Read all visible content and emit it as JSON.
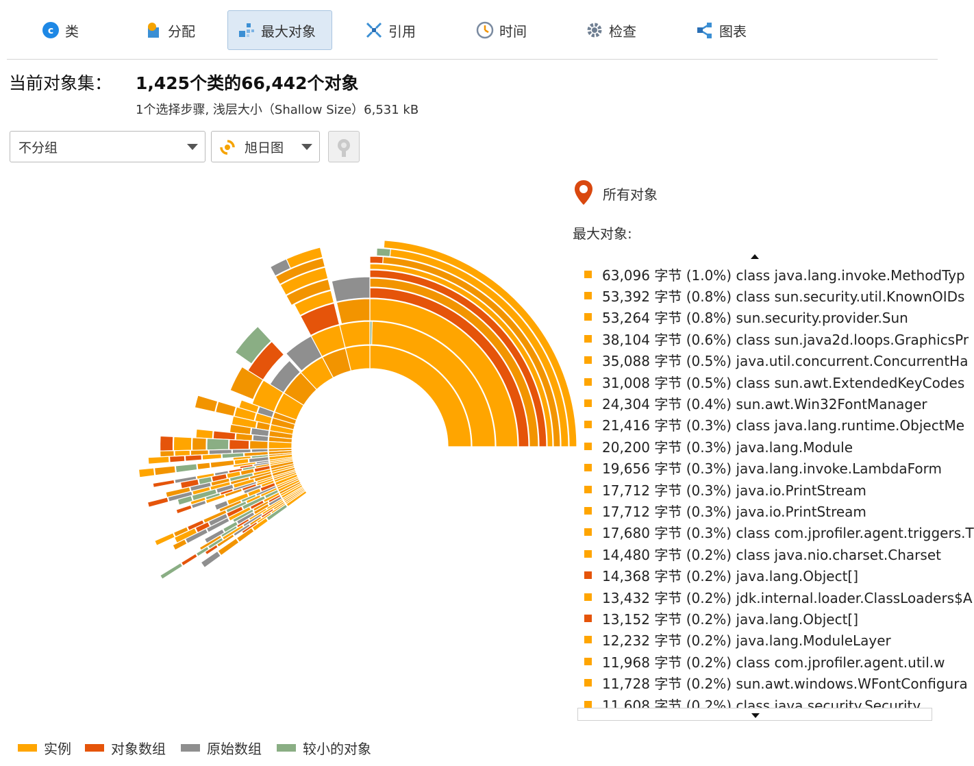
{
  "toolbar": {
    "tabs": [
      {
        "label": "类",
        "icon": "class-icon"
      },
      {
        "label": "分配",
        "icon": "allocation-icon"
      },
      {
        "label": "最大对象",
        "icon": "biggest-objects-icon"
      },
      {
        "label": "引用",
        "icon": "references-icon"
      },
      {
        "label": "时间",
        "icon": "clock-icon"
      },
      {
        "label": "检查",
        "icon": "gear-icon"
      },
      {
        "label": "图表",
        "icon": "graph-icon"
      }
    ],
    "active_tab": "最大对象"
  },
  "summary": {
    "title": "当前对象集：",
    "value": "1,425个类的66,442个对象",
    "subtitle": "1个选择步骤, 浅层大小（Shallow Size）6,531 kB"
  },
  "controls": {
    "grouping": "不分组",
    "chart_type": "旭日图"
  },
  "path": {
    "label": "所有对象"
  },
  "biggest_list": {
    "title": "最大对象:",
    "rows": [
      {
        "text": "63,096 字节 (1.0%) class java.lang.invoke.MethodTyp",
        "kind": "instance"
      },
      {
        "text": "53,392 字节 (0.8%) class sun.security.util.KnownOIDs",
        "kind": "instance"
      },
      {
        "text": "53,264 字节 (0.8%) sun.security.provider.Sun",
        "kind": "instance"
      },
      {
        "text": "38,104 字节 (0.6%) class sun.java2d.loops.GraphicsPr",
        "kind": "instance"
      },
      {
        "text": "35,088 字节 (0.5%) java.util.concurrent.ConcurrentHa",
        "kind": "instance"
      },
      {
        "text": "31,008 字节 (0.5%) class sun.awt.ExtendedKeyCodes",
        "kind": "instance"
      },
      {
        "text": "24,304 字节 (0.4%) sun.awt.Win32FontManager",
        "kind": "instance"
      },
      {
        "text": "21,416 字节 (0.3%) class java.lang.runtime.ObjectMe",
        "kind": "instance"
      },
      {
        "text": "20,200 字节 (0.3%) java.lang.Module",
        "kind": "instance"
      },
      {
        "text": "19,656 字节 (0.3%) java.lang.invoke.LambdaForm",
        "kind": "instance"
      },
      {
        "text": "17,712 字节 (0.3%) java.io.PrintStream",
        "kind": "instance"
      },
      {
        "text": "17,712 字节 (0.3%) java.io.PrintStream",
        "kind": "instance"
      },
      {
        "text": "17,680 字节 (0.3%) class com.jprofiler.agent.triggers.T",
        "kind": "instance"
      },
      {
        "text": "14,480 字节 (0.2%) class java.nio.charset.Charset",
        "kind": "instance"
      },
      {
        "text": "14,368 字节 (0.2%) java.lang.Object[]",
        "kind": "array"
      },
      {
        "text": "13,432 字节 (0.2%) jdk.internal.loader.ClassLoaders$A",
        "kind": "instance"
      },
      {
        "text": "13,152 字节 (0.2%) java.lang.Object[]",
        "kind": "array"
      },
      {
        "text": "12,232 字节 (0.2%) java.lang.ModuleLayer",
        "kind": "instance"
      },
      {
        "text": "11,968 字节 (0.2%) class com.jprofiler.agent.util.w",
        "kind": "instance"
      },
      {
        "text": "11,728 字节 (0.2%) sun.awt.windows.WFontConfigura",
        "kind": "instance"
      },
      {
        "text": "11,608 字节 (0.2%) class java.security.Security",
        "kind": "instance"
      }
    ]
  },
  "legend": [
    {
      "label": "实例",
      "kind": "instance"
    },
    {
      "label": "对象数组",
      "kind": "array"
    },
    {
      "label": "原始数组",
      "kind": "primitive"
    },
    {
      "label": "较小的对象",
      "kind": "small"
    }
  ],
  "colors": {
    "instance": "#ffa500",
    "instance_alt": "#f29400",
    "array": "#e5540a",
    "primitive": "#8f8f8f",
    "small": "#8aae84",
    "accent": "#dde9f5"
  }
}
